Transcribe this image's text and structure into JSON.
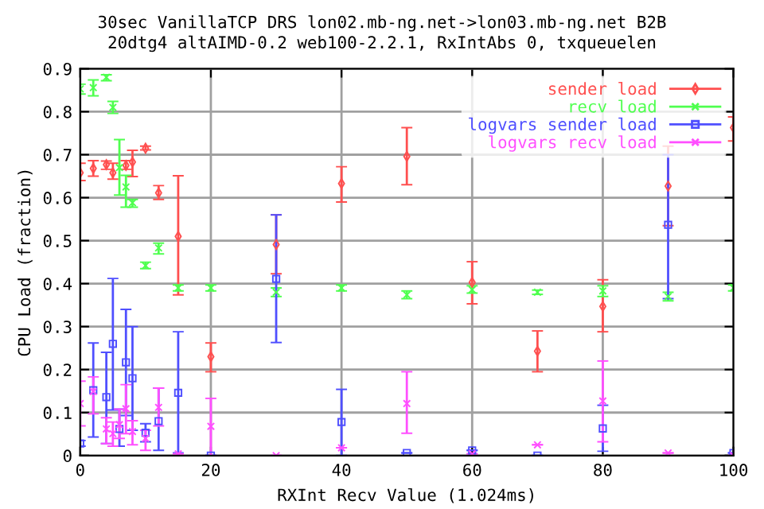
{
  "chart_data": {
    "type": "scatter",
    "title": "30sec VanillaTCP DRS lon02.mb-ng.net->lon03.mb-ng.net B2B",
    "subtitle": "20dtg4 altAIMD-0.2 web100-2.2.1, RxIntAbs 0, txqueuelen",
    "xlabel": "RXInt Recv Value (1.024ms)",
    "ylabel": "CPU Load (fraction)",
    "xlim": [
      0,
      100
    ],
    "ylim": [
      0,
      0.9
    ],
    "xticks": [
      0,
      20,
      40,
      60,
      80,
      100
    ],
    "yticks": [
      0,
      0.1,
      0.2,
      0.3,
      0.4,
      0.5,
      0.6,
      0.7,
      0.8,
      0.9
    ],
    "grid": true,
    "legend": "top right",
    "series": [
      {
        "name": "sender load",
        "color": "#ff4f4f",
        "marker": "diamond",
        "x": [
          0,
          2,
          4,
          5,
          7,
          8,
          10,
          12,
          15,
          20,
          30,
          40,
          50,
          60,
          70,
          80,
          90,
          100
        ],
        "values": [
          0.658,
          0.668,
          0.677,
          0.658,
          0.675,
          0.683,
          0.715,
          0.611,
          0.51,
          0.23,
          0.491,
          0.633,
          0.696,
          0.403,
          0.243,
          0.347,
          0.627,
          0.763
        ],
        "errors": [
          [
            0.64,
            0.68
          ],
          [
            0.65,
            0.686
          ],
          [
            0.666,
            0.685
          ],
          [
            0.643,
            0.68
          ],
          [
            0.666,
            0.686
          ],
          [
            0.649,
            0.71
          ],
          [
            0.711,
            0.72
          ],
          [
            0.596,
            0.628
          ],
          [
            0.374,
            0.651
          ],
          [
            0.195,
            0.262
          ],
          [
            0.423,
            0.56
          ],
          [
            0.59,
            0.672
          ],
          [
            0.63,
            0.763
          ],
          [
            0.353,
            0.451
          ],
          [
            0.195,
            0.29
          ],
          [
            0.288,
            0.409
          ],
          [
            0.535,
            0.72
          ],
          [
            0.732,
            0.788
          ]
        ]
      },
      {
        "name": "recv load",
        "color": "#4fff4f",
        "marker": "cross",
        "x": [
          0,
          2,
          4,
          5,
          6,
          7,
          8,
          10,
          12,
          15,
          20,
          30,
          40,
          50,
          60,
          70,
          80,
          90,
          100
        ],
        "values": [
          0.853,
          0.856,
          0.88,
          0.81,
          0.67,
          0.625,
          0.588,
          0.442,
          0.483,
          0.39,
          0.39,
          0.38,
          0.39,
          0.374,
          0.386,
          0.38,
          0.383,
          0.37,
          0.39
        ],
        "errors": [
          [
            0.841,
            0.864
          ],
          [
            0.837,
            0.874
          ],
          [
            0.872,
            0.886
          ],
          [
            0.796,
            0.824
          ],
          [
            0.606,
            0.735
          ],
          [
            0.578,
            0.652
          ],
          [
            0.578,
            0.596
          ],
          [
            0.435,
            0.45
          ],
          [
            0.469,
            0.494
          ],
          [
            0.383,
            0.397
          ],
          [
            0.383,
            0.397
          ],
          [
            0.37,
            0.39
          ],
          [
            0.383,
            0.397
          ],
          [
            0.365,
            0.383
          ],
          [
            0.378,
            0.395
          ],
          [
            0.375,
            0.385
          ],
          [
            0.37,
            0.395
          ],
          [
            0.36,
            0.38
          ],
          [
            0.383,
            0.397
          ]
        ]
      },
      {
        "name": "logvars sender load",
        "color": "#4f4fff",
        "marker": "square",
        "x": [
          0,
          2,
          4,
          5,
          6,
          7,
          8,
          10,
          12,
          15,
          20,
          30,
          40,
          50,
          60,
          70,
          80,
          90,
          100
        ],
        "values": [
          0.028,
          0.152,
          0.136,
          0.26,
          0.062,
          0.217,
          0.18,
          0.053,
          0.08,
          0.146,
          0.0,
          0.411,
          0.078,
          0.006,
          0.012,
          0.0,
          0.063,
          0.537,
          0.006
        ],
        "errors": [
          [
            0.022,
            0.035
          ],
          [
            0.043,
            0.262
          ],
          [
            0.028,
            0.24
          ],
          [
            0.106,
            0.412
          ],
          [
            0.022,
            0.108
          ],
          [
            0.093,
            0.34
          ],
          [
            0.059,
            0.3
          ],
          [
            0.032,
            0.074
          ],
          [
            0.012,
            0.157
          ],
          [
            0.006,
            0.288
          ],
          null,
          [
            0.263,
            0.56
          ],
          [
            0.0,
            0.154
          ],
          null,
          null,
          null,
          [
            0.01,
            0.117
          ],
          [
            0.365,
            0.7
          ],
          null
        ]
      },
      {
        "name": "logvars recv load",
        "color": "#ff4fff",
        "marker": "cross",
        "x": [
          0,
          2,
          4,
          5,
          6,
          7,
          8,
          10,
          12,
          15,
          20,
          30,
          40,
          50,
          60,
          70,
          80,
          90,
          100
        ],
        "values": [
          0.121,
          0.149,
          0.062,
          0.051,
          0.072,
          0.109,
          0.056,
          0.04,
          0.112,
          0.004,
          0.068,
          0.0,
          0.018,
          0.121,
          0.004,
          0.025,
          0.127,
          0.006,
          0.0
        ],
        "errors": [
          [
            0.069,
            0.173
          ],
          [
            0.097,
            0.183
          ],
          [
            0.028,
            0.088
          ],
          [
            0.022,
            0.078
          ],
          [
            0.04,
            0.108
          ],
          [
            0.051,
            0.165
          ],
          [
            0.025,
            0.081
          ],
          [
            0.012,
            0.059
          ],
          [
            0.069,
            0.157
          ],
          null,
          [
            0.0,
            0.133
          ],
          null,
          null,
          [
            0.052,
            0.195
          ],
          null,
          null,
          [
            0.032,
            0.22
          ],
          null,
          null
        ]
      }
    ]
  }
}
